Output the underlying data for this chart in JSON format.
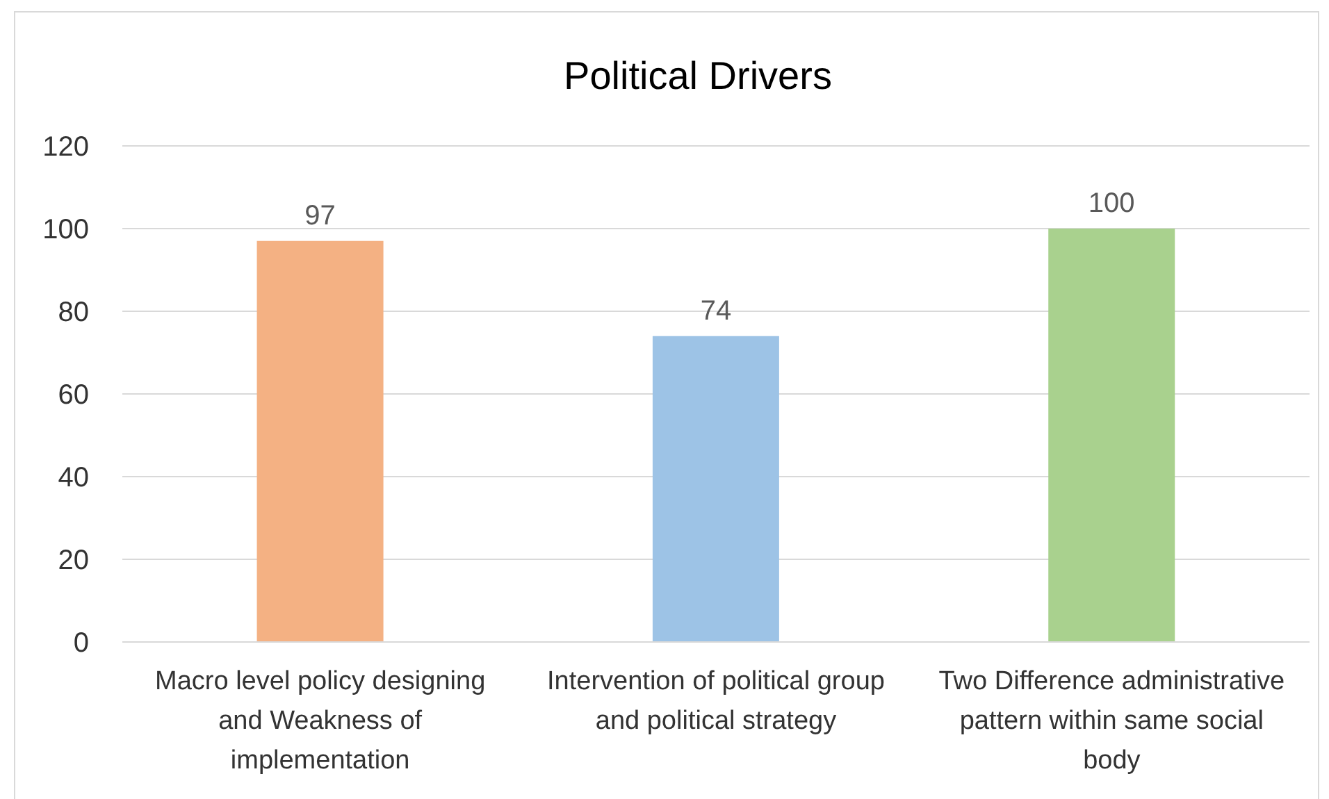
{
  "chart_data": {
    "type": "bar",
    "title": "Political Drivers",
    "categories": [
      "Macro level policy designing and Weakness of implementation",
      "Intervention of political group and political strategy",
      "Two Difference administrative pattern within same social body"
    ],
    "values": [
      97,
      74,
      100
    ],
    "colors": [
      "#f4b183",
      "#9dc3e6",
      "#a9d18e"
    ],
    "ylim": [
      0,
      120
    ],
    "yticks": [
      0,
      20,
      40,
      60,
      80,
      100,
      120
    ],
    "grid": "y",
    "data_labels": true
  }
}
